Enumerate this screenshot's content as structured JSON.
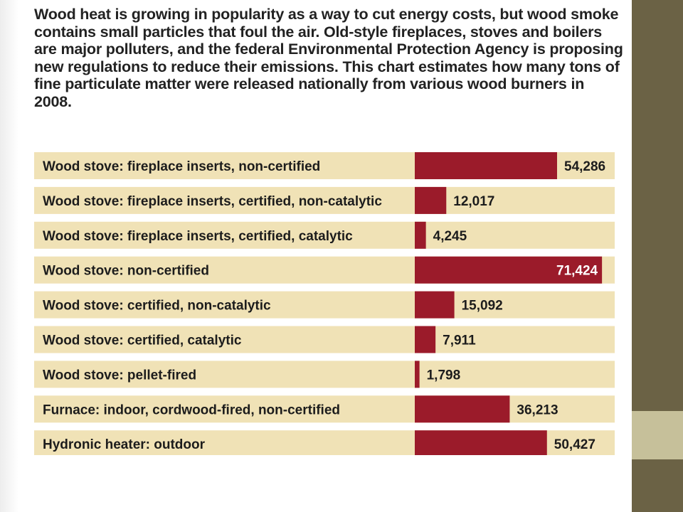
{
  "theme": {
    "bar_color": "#9b1b2a",
    "row_color": "#f0e2b6",
    "panel_dark": "#6b6245",
    "panel_light": "#c6c09a"
  },
  "intro_text": "Wood heat is growing in popularity as a way to cut energy costs, but wood smoke contains small particles that foul the air. Old-style fireplaces, stoves and boilers are major polluters, and the federal Environmental Protection Agency is proposing new regulations to reduce their emissions. This chart estimates how many tons of fine particulate matter were released nationally from various wood burners in 2008.",
  "chart_data": {
    "type": "bar",
    "orientation": "horizontal",
    "title": "",
    "xlabel": "",
    "ylabel": "",
    "xlim": [
      0,
      80000
    ],
    "categories": [
      "Wood stove: fireplace inserts, non-certified",
      "Wood stove: fireplace inserts, certified, non-catalytic",
      "Wood stove: fireplace inserts, certified, catalytic",
      "Wood stove: non-certified",
      "Wood stove: certified, non-catalytic",
      "Wood stove: certified, catalytic",
      "Wood stove: pellet-fired",
      "Furnace: indoor, cordwood-fired, non-certified",
      "Hydronic heater: outdoor"
    ],
    "values": [
      54286,
      12017,
      4245,
      71424,
      15092,
      7911,
      1798,
      36213,
      50427
    ],
    "value_labels": [
      "54,286",
      "12,017",
      "4,245",
      "71,424",
      "15,092",
      "7,911",
      "1,798",
      "36,213",
      "50,427"
    ],
    "grid": false,
    "legend": "none"
  }
}
